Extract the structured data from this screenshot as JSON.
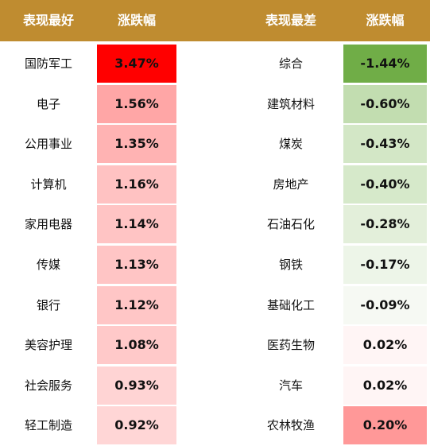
{
  "headers": {
    "best": "表现最好",
    "best_change": "涨跌幅",
    "worst": "表现最差",
    "worst_change": "涨跌幅"
  },
  "colors": {
    "header_bg": "#bf8c30",
    "header_text": "#ffffff"
  },
  "best_rows": [
    {
      "name": "国防军工",
      "value": "3.47%",
      "color": "#ff0000"
    },
    {
      "name": "电子",
      "value": "1.56%",
      "color": "#ffa6a6"
    },
    {
      "name": "公用事业",
      "value": "1.35%",
      "color": "#ffb3b3"
    },
    {
      "name": "计算机",
      "value": "1.16%",
      "color": "#ffc2c2"
    },
    {
      "name": "家用电器",
      "value": "1.14%",
      "color": "#ffc4c4"
    },
    {
      "name": "传媒",
      "value": "1.13%",
      "color": "#ffc5c5"
    },
    {
      "name": "银行",
      "value": "1.12%",
      "color": "#ffc6c6"
    },
    {
      "name": "美容护理",
      "value": "1.08%",
      "color": "#ffc9c9"
    },
    {
      "name": "社会服务",
      "value": "0.93%",
      "color": "#ffd4d4"
    },
    {
      "name": "轻工制造",
      "value": "0.92%",
      "color": "#ffd6d6"
    }
  ],
  "worst_rows": [
    {
      "name": "综合",
      "value": "-1.44%",
      "color": "#70ad47"
    },
    {
      "name": "建筑材料",
      "value": "-0.60%",
      "color": "#c2ddb0"
    },
    {
      "name": "煤炭",
      "value": "-0.43%",
      "color": "#d3e7c6"
    },
    {
      "name": "房地产",
      "value": "-0.40%",
      "color": "#d6e9ca"
    },
    {
      "name": "石油石化",
      "value": "-0.28%",
      "color": "#e3efda"
    },
    {
      "name": "钢铁",
      "value": "-0.17%",
      "color": "#edf5e8"
    },
    {
      "name": "基础化工",
      "value": "-0.09%",
      "color": "#f6f9f3"
    },
    {
      "name": "医药生物",
      "value": "0.02%",
      "color": "#fff5f5"
    },
    {
      "name": "汽车",
      "value": "0.02%",
      "color": "#fff5f5"
    },
    {
      "name": "农林牧渔",
      "value": "0.20%",
      "color": "#ff9898"
    }
  ]
}
